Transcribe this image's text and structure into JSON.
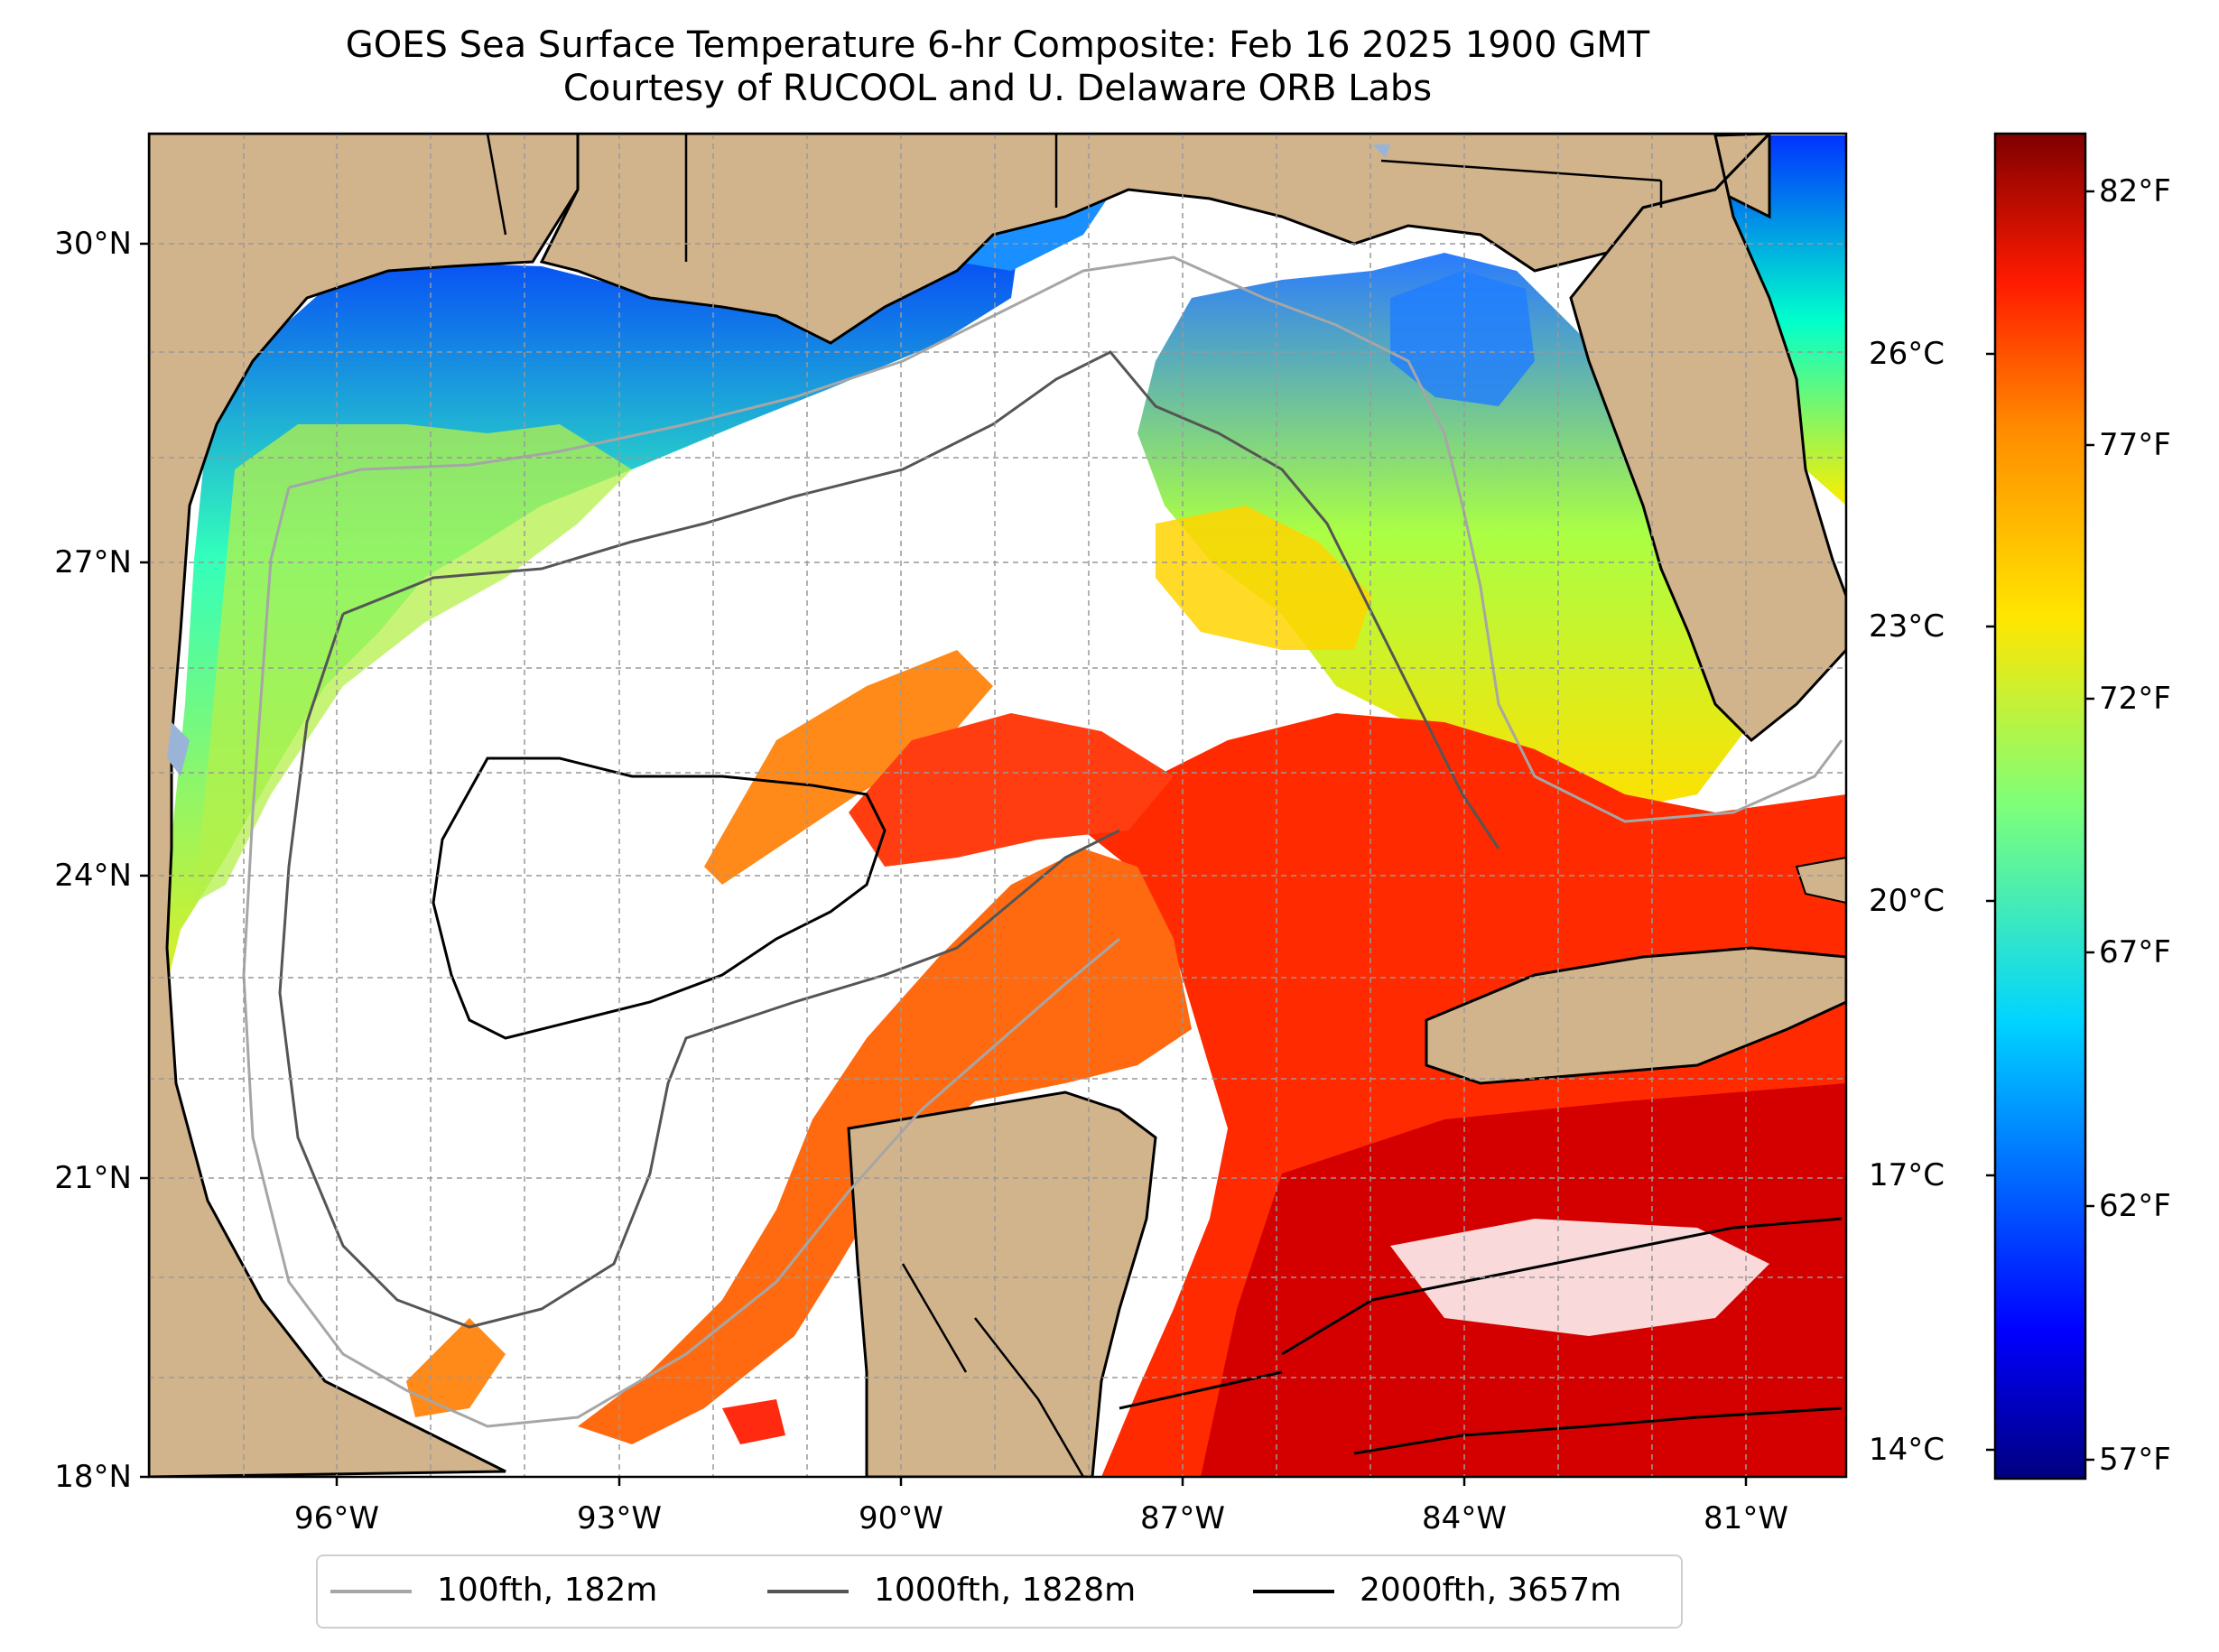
{
  "title_line1": "GOES Sea Surface Temperature 6-hr Composite: Feb 16 2025 1900 GMT",
  "title_line2": "Courtesy of RUCOOL and U. Delaware ORB Labs",
  "lat_ticks": [
    "30°N",
    "27°N",
    "24°N",
    "21°N",
    "18°N"
  ],
  "lon_ticks": [
    "96°W",
    "93°W",
    "90°W",
    "87°W",
    "84°W",
    "81°W"
  ],
  "colorbar_celsius": [
    "26°C",
    "23°C",
    "20°C",
    "17°C",
    "14°C"
  ],
  "colorbar_fahrenheit": [
    "82°F",
    "77°F",
    "72°F",
    "67°F",
    "62°F",
    "57°F"
  ],
  "legend": [
    {
      "label": "100fth, 182m",
      "color": "#a6a6a6"
    },
    {
      "label": "1000fth, 1828m",
      "color": "#555555"
    },
    {
      "label": "2000fth, 3657m",
      "color": "#000000"
    }
  ],
  "colors": {
    "land": "#d2b48c",
    "water_no_data": "#ffffff",
    "lakes": "#9ab4d8"
  }
}
